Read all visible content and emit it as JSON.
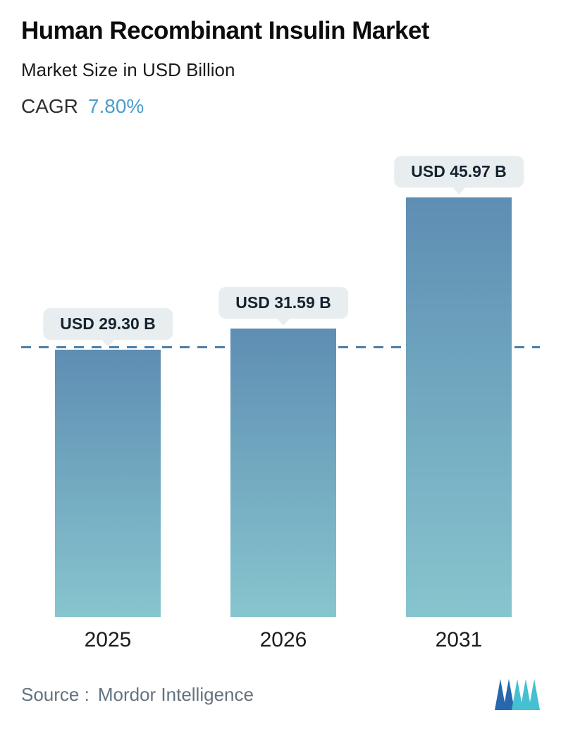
{
  "header": {
    "title": "Human Recombinant Insulin Market",
    "subtitle": "Market Size in USD Billion",
    "cagr_label": "CAGR",
    "cagr_value": "7.80%"
  },
  "chart_data": {
    "type": "bar",
    "title": "Human Recombinant Insulin Market",
    "subtitle": "Market Size in USD Billion",
    "cagr": "7.80%",
    "categories": [
      "2025",
      "2026",
      "2031"
    ],
    "values": [
      29.3,
      31.59,
      45.97
    ],
    "bar_labels": [
      "USD 29.30 B",
      "USD 31.59 B",
      "USD 45.97 B"
    ],
    "xlabel": "",
    "ylabel": "Market Size in USD Billion",
    "ylim": [
      0,
      46
    ],
    "grid": false,
    "legend": false,
    "reference_line": {
      "value": 29.3,
      "style": "dashed",
      "color": "#4d7fa8"
    },
    "colors": {
      "bar_gradient_top": "#5e8eb3",
      "bar_gradient_bottom": "#87c5ce",
      "label_bubble_bg": "#e8eef0",
      "label_text": "#152330",
      "cagr_accent": "#4a9dcb"
    }
  },
  "footer": {
    "source_label": "Source :",
    "source_value": "Mordor Intelligence",
    "logo": "mordor-intelligence-logo"
  }
}
